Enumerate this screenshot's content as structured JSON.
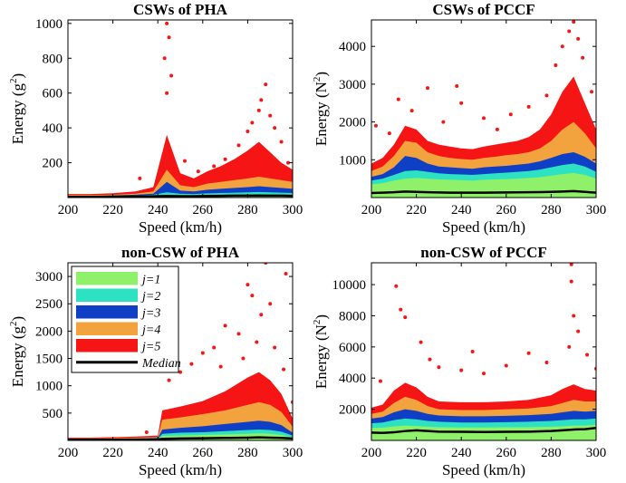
{
  "colors": {
    "j1": "#8ff06a",
    "j2": "#2de2c2",
    "j3": "#0f3fc4",
    "j4": "#f2a33d",
    "j5": "#f51515",
    "median": "#000000"
  },
  "legend": {
    "items": [
      {
        "label": "j=1",
        "color": "#8ff06a",
        "kind": "patch"
      },
      {
        "label": "j=2",
        "color": "#2de2c2",
        "kind": "patch"
      },
      {
        "label": "j=3",
        "color": "#0f3fc4",
        "kind": "patch"
      },
      {
        "label": "j=4",
        "color": "#f2a33d",
        "kind": "patch"
      },
      {
        "label": "j=5",
        "color": "#f51515",
        "kind": "patch"
      },
      {
        "label": "Median",
        "color": "#000000",
        "kind": "line"
      }
    ]
  },
  "chart_data": [
    {
      "type": "area",
      "title": "CSWs of PHA",
      "xlabel": "Speed (km/h)",
      "ylabel_base": "Energy (g",
      "ylabel_sup": "2",
      "ylabel_end": ")",
      "xlim": [
        200,
        300
      ],
      "ylim": [
        0,
        1020
      ],
      "xticks": [
        200,
        220,
        240,
        260,
        280,
        300
      ],
      "yticks": [
        200,
        400,
        600,
        800,
        1000
      ],
      "x": [
        200,
        210,
        220,
        230,
        238,
        244,
        250,
        256,
        262,
        268,
        274,
        280,
        285,
        290,
        295,
        300
      ],
      "series": [
        {
          "name": "j=1",
          "values": [
            5,
            5,
            6,
            8,
            10,
            15,
            12,
            11,
            13,
            14,
            15,
            16,
            17,
            16,
            15,
            14
          ]
        },
        {
          "name": "j=2",
          "values": [
            8,
            8,
            9,
            12,
            16,
            30,
            22,
            20,
            24,
            26,
            28,
            30,
            32,
            30,
            28,
            26
          ]
        },
        {
          "name": "j=3",
          "values": [
            10,
            10,
            12,
            16,
            22,
            90,
            40,
            35,
            45,
            50,
            55,
            60,
            65,
            60,
            55,
            50
          ]
        },
        {
          "name": "j=4",
          "values": [
            14,
            14,
            16,
            22,
            35,
            160,
            70,
            60,
            80,
            90,
            100,
            110,
            120,
            110,
            100,
            90
          ]
        },
        {
          "name": "j=5",
          "values": [
            20,
            20,
            25,
            35,
            60,
            360,
            140,
            110,
            150,
            180,
            220,
            270,
            320,
            260,
            200,
            160
          ]
        },
        {
          "name": "Median",
          "values": [
            4,
            4,
            5,
            6,
            7,
            9,
            8,
            8,
            9,
            10,
            11,
            11,
            12,
            11,
            11,
            10
          ]
        }
      ],
      "outliers": [
        {
          "x": 244,
          "y": 1000
        },
        {
          "x": 245,
          "y": 920
        },
        {
          "x": 243,
          "y": 800
        },
        {
          "x": 246,
          "y": 700
        },
        {
          "x": 244,
          "y": 600
        },
        {
          "x": 288,
          "y": 650
        },
        {
          "x": 286,
          "y": 560
        },
        {
          "x": 285,
          "y": 500
        },
        {
          "x": 290,
          "y": 470
        },
        {
          "x": 282,
          "y": 430
        },
        {
          "x": 292,
          "y": 400
        },
        {
          "x": 280,
          "y": 380
        },
        {
          "x": 295,
          "y": 320
        },
        {
          "x": 276,
          "y": 300
        },
        {
          "x": 298,
          "y": 200
        },
        {
          "x": 270,
          "y": 220
        },
        {
          "x": 265,
          "y": 180
        },
        {
          "x": 252,
          "y": 210
        },
        {
          "x": 258,
          "y": 150
        },
        {
          "x": 232,
          "y": 110
        }
      ]
    },
    {
      "type": "area",
      "title": "CSWs of PCCF",
      "xlabel": "Speed (km/h)",
      "ylabel_base": "Energy (N",
      "ylabel_sup": "2",
      "ylabel_end": ")",
      "xlim": [
        200,
        300
      ],
      "ylim": [
        0,
        4700
      ],
      "xticks": [
        200,
        220,
        240,
        260,
        280,
        300
      ],
      "yticks": [
        1000,
        2000,
        3000,
        4000
      ],
      "x": [
        200,
        205,
        210,
        215,
        220,
        225,
        230,
        235,
        240,
        245,
        250,
        255,
        260,
        265,
        270,
        275,
        280,
        285,
        290,
        295,
        300
      ],
      "series": [
        {
          "name": "j=1",
          "values": [
            350,
            380,
            450,
            500,
            520,
            500,
            480,
            470,
            460,
            450,
            470,
            480,
            490,
            500,
            520,
            540,
            580,
            620,
            650,
            600,
            500
          ]
        },
        {
          "name": "j=2",
          "values": [
            450,
            500,
            600,
            700,
            720,
            680,
            640,
            620,
            610,
            600,
            620,
            640,
            660,
            680,
            700,
            740,
            800,
            860,
            900,
            820,
            680
          ]
        },
        {
          "name": "j=3",
          "values": [
            550,
            620,
            800,
            1100,
            1050,
            900,
            820,
            800,
            780,
            760,
            800,
            820,
            840,
            870,
            900,
            960,
            1050,
            1150,
            1200,
            1080,
            900
          ]
        },
        {
          "name": "j=4",
          "values": [
            700,
            820,
            1100,
            1500,
            1450,
            1200,
            1100,
            1050,
            1020,
            1000,
            1050,
            1080,
            1120,
            1150,
            1200,
            1300,
            1500,
            1800,
            2000,
            1700,
            1300
          ]
        },
        {
          "name": "j=5",
          "values": [
            900,
            1050,
            1400,
            1900,
            1800,
            1500,
            1400,
            1350,
            1300,
            1280,
            1350,
            1400,
            1450,
            1500,
            1600,
            1800,
            2200,
            2800,
            3200,
            2500,
            1800
          ]
        },
        {
          "name": "Median",
          "values": [
            120,
            130,
            140,
            160,
            150,
            140,
            135,
            130,
            130,
            128,
            130,
            132,
            135,
            138,
            140,
            145,
            150,
            160,
            170,
            150,
            130
          ]
        }
      ],
      "outliers": [
        {
          "x": 290,
          "y": 4650
        },
        {
          "x": 288,
          "y": 4400
        },
        {
          "x": 292,
          "y": 4200
        },
        {
          "x": 285,
          "y": 4000
        },
        {
          "x": 294,
          "y": 3700
        },
        {
          "x": 282,
          "y": 3500
        },
        {
          "x": 212,
          "y": 2600
        },
        {
          "x": 225,
          "y": 2900
        },
        {
          "x": 238,
          "y": 2950
        },
        {
          "x": 240,
          "y": 2500
        },
        {
          "x": 218,
          "y": 2300
        },
        {
          "x": 232,
          "y": 2000
        },
        {
          "x": 250,
          "y": 2100
        },
        {
          "x": 262,
          "y": 2200
        },
        {
          "x": 270,
          "y": 2400
        },
        {
          "x": 278,
          "y": 2700
        },
        {
          "x": 298,
          "y": 2800
        },
        {
          "x": 202,
          "y": 1900
        },
        {
          "x": 208,
          "y": 1700
        },
        {
          "x": 256,
          "y": 1800
        }
      ]
    },
    {
      "type": "area",
      "title": "non-CSW of PHA",
      "xlabel": "Speed (km/h)",
      "ylabel_base": "Energy (g",
      "ylabel_sup": "2",
      "ylabel_end": ")",
      "xlim": [
        200,
        300
      ],
      "ylim": [
        0,
        3250
      ],
      "xticks": [
        200,
        220,
        240,
        260,
        280,
        300
      ],
      "yticks": [
        500,
        1000,
        1500,
        2000,
        2500,
        3000
      ],
      "x": [
        200,
        210,
        220,
        230,
        240,
        242,
        250,
        260,
        270,
        280,
        285,
        290,
        295,
        300
      ],
      "series": [
        {
          "name": "j=1",
          "values": [
            15,
            15,
            18,
            20,
            25,
            80,
            90,
            100,
            110,
            120,
            130,
            120,
            100,
            60
          ]
        },
        {
          "name": "j=2",
          "values": [
            20,
            20,
            25,
            30,
            35,
            120,
            140,
            150,
            170,
            190,
            200,
            190,
            160,
            90
          ]
        },
        {
          "name": "j=3",
          "values": [
            25,
            25,
            30,
            35,
            45,
            200,
            230,
            260,
            300,
            340,
            360,
            340,
            280,
            140
          ]
        },
        {
          "name": "j=4",
          "values": [
            35,
            35,
            40,
            50,
            60,
            380,
            420,
            480,
            550,
            650,
            700,
            650,
            520,
            250
          ]
        },
        {
          "name": "j=5",
          "values": [
            50,
            50,
            60,
            70,
            90,
            550,
            620,
            720,
            900,
            1150,
            1250,
            1100,
            850,
            400
          ]
        },
        {
          "name": "Median",
          "values": [
            10,
            10,
            12,
            14,
            16,
            30,
            35,
            40,
            45,
            50,
            55,
            50,
            45,
            35
          ]
        }
      ],
      "outliers": [
        {
          "x": 288,
          "y": 3250
        },
        {
          "x": 297,
          "y": 3050
        },
        {
          "x": 280,
          "y": 2850
        },
        {
          "x": 282,
          "y": 2650
        },
        {
          "x": 290,
          "y": 2500
        },
        {
          "x": 286,
          "y": 2300
        },
        {
          "x": 270,
          "y": 2100
        },
        {
          "x": 276,
          "y": 1950
        },
        {
          "x": 284,
          "y": 1800
        },
        {
          "x": 265,
          "y": 1700
        },
        {
          "x": 260,
          "y": 1600
        },
        {
          "x": 292,
          "y": 1700
        },
        {
          "x": 255,
          "y": 1400
        },
        {
          "x": 250,
          "y": 1250
        },
        {
          "x": 245,
          "y": 1100
        },
        {
          "x": 278,
          "y": 1500
        },
        {
          "x": 296,
          "y": 1300
        },
        {
          "x": 268,
          "y": 1350
        },
        {
          "x": 300,
          "y": 700
        },
        {
          "x": 235,
          "y": 150
        }
      ]
    },
    {
      "type": "area",
      "title": "non-CSW of PCCF",
      "xlabel": "Speed (km/h)",
      "ylabel_base": "Energy (N",
      "ylabel_sup": "2",
      "ylabel_end": ")",
      "xlim": [
        200,
        300
      ],
      "ylim": [
        0,
        11400
      ],
      "xticks": [
        200,
        220,
        240,
        260,
        280,
        300
      ],
      "yticks": [
        2000,
        4000,
        6000,
        8000,
        10000
      ],
      "x": [
        200,
        205,
        210,
        215,
        220,
        225,
        230,
        240,
        250,
        260,
        270,
        280,
        285,
        290,
        295,
        300
      ],
      "series": [
        {
          "name": "j=1",
          "values": [
            800,
            820,
            900,
            950,
            920,
            880,
            850,
            830,
            830,
            840,
            850,
            880,
            900,
            950,
            950,
            1000
          ]
        },
        {
          "name": "j=2",
          "values": [
            1100,
            1150,
            1300,
            1400,
            1350,
            1250,
            1200,
            1150,
            1150,
            1170,
            1200,
            1250,
            1300,
            1350,
            1350,
            1400
          ]
        },
        {
          "name": "j=3",
          "values": [
            1400,
            1500,
            1800,
            2000,
            1900,
            1700,
            1600,
            1550,
            1550,
            1580,
            1620,
            1700,
            1800,
            1900,
            1850,
            1900
          ]
        },
        {
          "name": "j=4",
          "values": [
            1700,
            1850,
            2400,
            2800,
            2600,
            2200,
            2000,
            1950,
            1950,
            2000,
            2050,
            2200,
            2400,
            2600,
            2500,
            2500
          ]
        },
        {
          "name": "j=5",
          "values": [
            2100,
            2300,
            3200,
            3700,
            3400,
            2800,
            2500,
            2450,
            2450,
            2500,
            2600,
            2900,
            3300,
            3600,
            3300,
            3200
          ]
        },
        {
          "name": "Median",
          "values": [
            500,
            480,
            520,
            600,
            650,
            600,
            560,
            550,
            540,
            550,
            560,
            600,
            650,
            700,
            720,
            800
          ]
        }
      ],
      "outliers": [
        {
          "x": 289,
          "y": 11300
        },
        {
          "x": 289,
          "y": 10200
        },
        {
          "x": 211,
          "y": 9900
        },
        {
          "x": 213,
          "y": 8400
        },
        {
          "x": 215,
          "y": 7900
        },
        {
          "x": 222,
          "y": 6300
        },
        {
          "x": 290,
          "y": 8000
        },
        {
          "x": 292,
          "y": 7000
        },
        {
          "x": 245,
          "y": 5700
        },
        {
          "x": 270,
          "y": 5600
        },
        {
          "x": 260,
          "y": 4800
        },
        {
          "x": 288,
          "y": 6000
        },
        {
          "x": 296,
          "y": 5500
        },
        {
          "x": 230,
          "y": 4700
        },
        {
          "x": 240,
          "y": 4500
        },
        {
          "x": 250,
          "y": 4300
        },
        {
          "x": 278,
          "y": 5000
        },
        {
          "x": 204,
          "y": 3800
        },
        {
          "x": 300,
          "y": 4600
        },
        {
          "x": 226,
          "y": 5200
        }
      ]
    }
  ]
}
